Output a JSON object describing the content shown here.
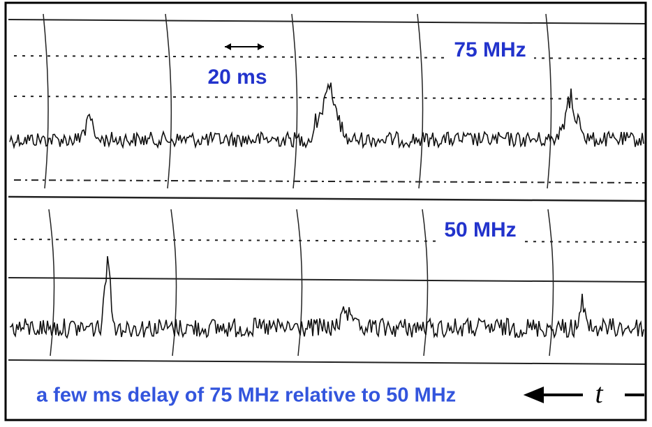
{
  "labels": {
    "top_band": "75 MHz",
    "scale": "20 ms",
    "bottom_band": "50 MHz",
    "caption": "a few ms delay of 75 MHz relative to 50 MHz",
    "time_axis": "t"
  }
}
